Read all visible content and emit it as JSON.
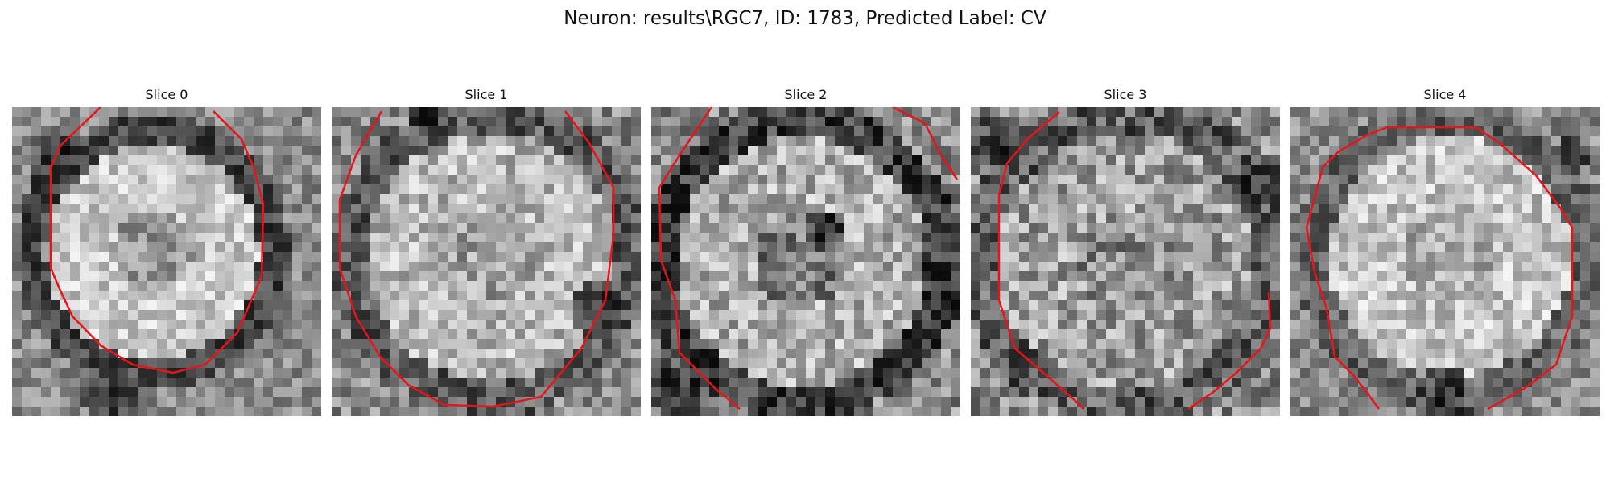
{
  "figure": {
    "title": "Neuron: results\\RGC7, ID: 1783, Predicted Label: CV",
    "contour_color": "#e8141a"
  },
  "panels": [
    {
      "label": "Slice 0"
    },
    {
      "label": "Slice 1"
    },
    {
      "label": "Slice 2"
    },
    {
      "label": "Slice 3"
    },
    {
      "label": "Slice 4"
    }
  ]
}
